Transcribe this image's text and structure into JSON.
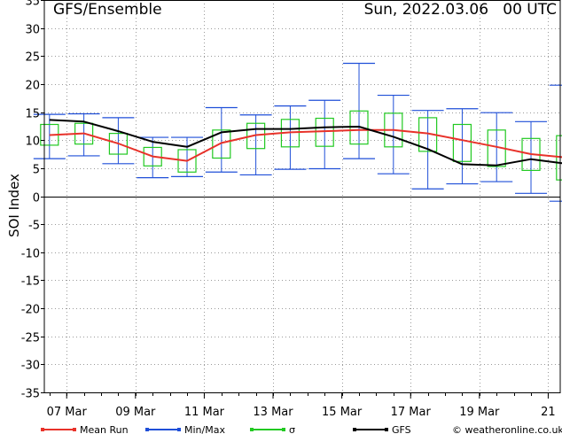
{
  "chart_data": {
    "type": "line",
    "title": "GFS/Ensemble",
    "datetime": "Sun, 2022.03.06   00 UTC",
    "ylabel": "SOI Index",
    "ylim": [
      -35,
      35
    ],
    "yticks": [
      35,
      30,
      25,
      20,
      15,
      10,
      5,
      0,
      -5,
      -10,
      -15,
      -20,
      -25,
      -30,
      -35
    ],
    "xlim": [
      6.35,
      21.35
    ],
    "xticks": [
      {
        "x": 7,
        "label": "07 Mar"
      },
      {
        "x": 9,
        "label": "09 Mar"
      },
      {
        "x": 11,
        "label": "11 Mar"
      },
      {
        "x": 13,
        "label": "13 Mar"
      },
      {
        "x": 15,
        "label": "15 Mar"
      },
      {
        "x": 17,
        "label": "17 Mar"
      },
      {
        "x": 19,
        "label": "19 Mar"
      },
      {
        "x": 21,
        "label": "21"
      }
    ],
    "x": [
      6.5,
      7,
      7.5,
      8,
      8.5,
      9,
      9.5,
      10,
      10.5,
      11,
      11.5,
      12,
      12.5,
      13,
      13.5,
      14,
      14.5,
      15,
      15.5,
      16,
      16.5,
      17,
      17.5,
      18,
      18.5,
      19,
      19.5,
      20,
      20.5,
      21,
      21.5
    ],
    "series": [
      {
        "name": "Mean Run",
        "color": "#e8322a",
        "x": [
          6.5,
          7.5,
          8.5,
          9.5,
          10.5,
          11.5,
          12.5,
          13.5,
          14.5,
          15.5,
          16.5,
          17.5,
          18.5,
          19.5,
          20.5,
          21.5
        ],
        "values": [
          10.9,
          11.2,
          9.4,
          7.1,
          6.3,
          9.5,
          10.9,
          11.4,
          11.6,
          11.8,
          11.8,
          11.2,
          10.0,
          8.8,
          7.5,
          6.9
        ]
      },
      {
        "name": "GFS",
        "color": "#000000",
        "x": [
          6.5,
          7.5,
          8.5,
          9.5,
          10.5,
          11.5,
          12.5,
          13.5,
          14.5,
          15.5,
          16.5,
          17.5,
          18.5,
          19.5,
          20.5,
          21.5
        ],
        "values": [
          13.6,
          13.3,
          11.6,
          9.7,
          8.8,
          11.4,
          12.0,
          12.0,
          12.3,
          12.4,
          10.6,
          8.4,
          5.7,
          5.5,
          6.6,
          5.8
        ]
      }
    ],
    "minmax": {
      "name": "Min/Max",
      "color": "#1f4fd8",
      "x": [
        6.5,
        7.5,
        8.5,
        9.5,
        10.5,
        11.5,
        12.5,
        13.5,
        14.5,
        15.5,
        16.5,
        17.5,
        18.5,
        19.5,
        20.5,
        21.5
      ],
      "min": [
        6.7,
        7.2,
        5.8,
        3.3,
        3.5,
        4.3,
        3.8,
        4.8,
        4.9,
        6.7,
        4.0,
        1.3,
        2.2,
        2.6,
        0.5,
        -0.9
      ],
      "max": [
        14.6,
        14.7,
        14.0,
        10.5,
        10.5,
        15.8,
        14.5,
        16.1,
        17.1,
        23.7,
        18.0,
        15.3,
        15.6,
        14.9,
        13.3,
        19.8
      ]
    },
    "sigma": {
      "name": "σ",
      "color": "#22c922",
      "x": [
        6.5,
        7.5,
        8.5,
        9.5,
        10.5,
        11.5,
        12.5,
        13.5,
        14.5,
        15.5,
        16.5,
        17.5,
        18.5,
        19.5,
        20.5,
        21.5
      ],
      "low": [
        9.1,
        9.3,
        7.5,
        5.4,
        4.3,
        6.8,
        8.5,
        8.8,
        8.9,
        9.3,
        8.8,
        8.0,
        6.2,
        5.3,
        4.6,
        2.9
      ],
      "high": [
        12.8,
        13.0,
        11.2,
        8.7,
        8.3,
        11.8,
        13.0,
        13.7,
        13.9,
        15.2,
        14.8,
        14.0,
        12.8,
        11.8,
        10.3,
        10.8
      ]
    },
    "grid": true
  },
  "legend": {
    "items": [
      {
        "label": "Mean Run",
        "color": "#e8322a"
      },
      {
        "label": "Min/Max",
        "color": "#1f4fd8"
      },
      {
        "label": "σ",
        "color": "#22c922"
      },
      {
        "label": "GFS",
        "color": "#000000"
      }
    ],
    "credit": "© weatheronline.co.uk"
  }
}
